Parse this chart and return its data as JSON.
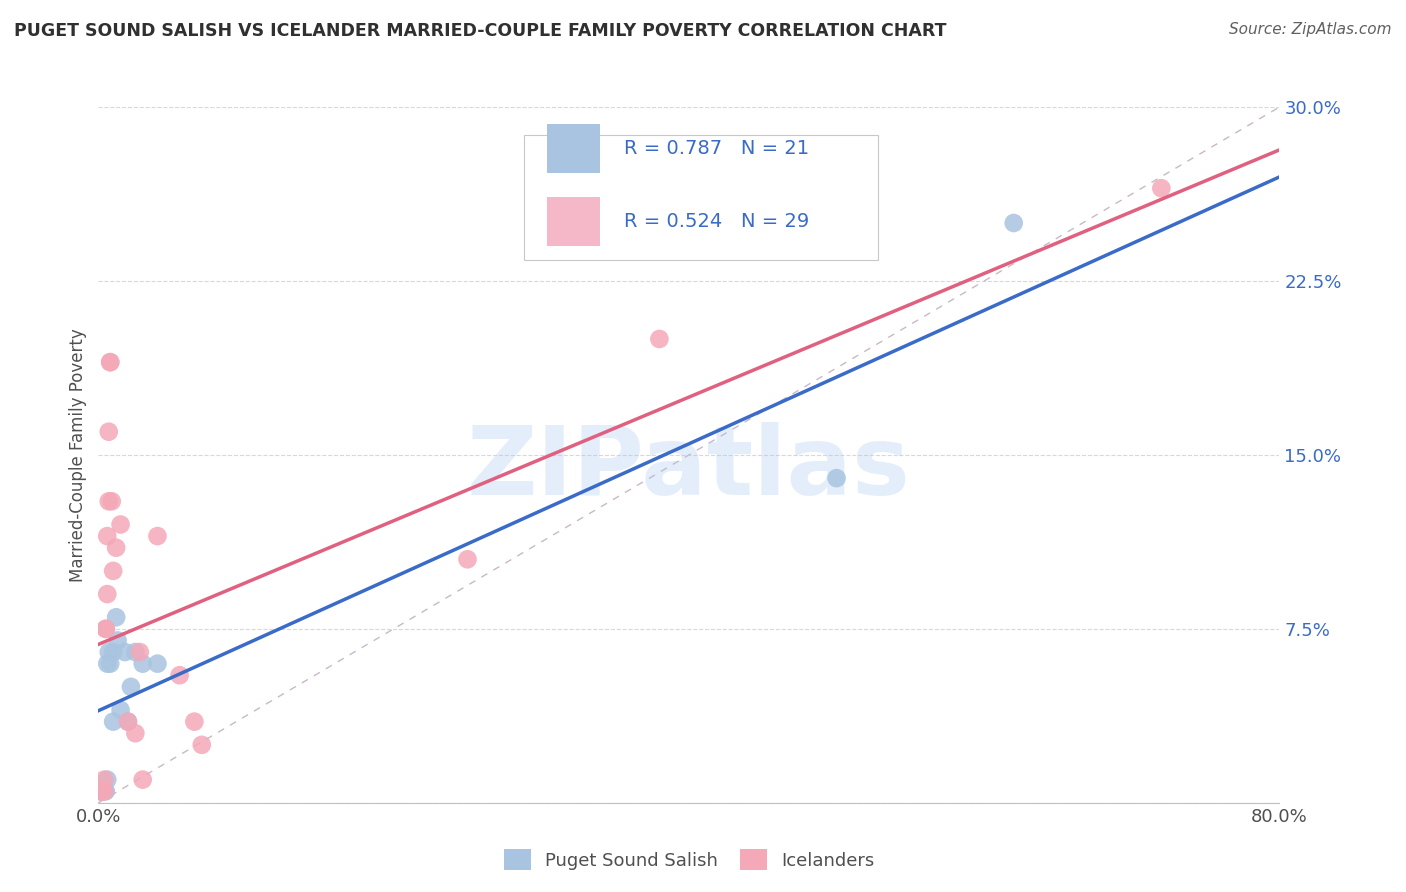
{
  "title": "PUGET SOUND SALISH VS ICELANDER MARRIED-COUPLE FAMILY POVERTY CORRELATION CHART",
  "source": "Source: ZipAtlas.com",
  "ylabel": "Married-Couple Family Poverty",
  "watermark": "ZIPatlas",
  "xlim": [
    0.0,
    0.8
  ],
  "ylim": [
    0.0,
    0.3
  ],
  "xticks": [
    0.0,
    0.1,
    0.2,
    0.3,
    0.4,
    0.5,
    0.6,
    0.7,
    0.8
  ],
  "xticklabels": [
    "0.0%",
    "",
    "",
    "",
    "",
    "",
    "",
    "",
    "80.0%"
  ],
  "yticks": [
    0.0,
    0.075,
    0.15,
    0.225,
    0.3
  ],
  "yticklabels": [
    "",
    "7.5%",
    "15.0%",
    "22.5%",
    "30.0%"
  ],
  "blue_R": 0.787,
  "blue_N": 21,
  "pink_R": 0.524,
  "pink_N": 29,
  "blue_color": "#a8c4e0",
  "pink_color": "#f4a8b8",
  "blue_line_color": "#3a6bc8",
  "pink_line_color": "#e06080",
  "diag_line_color": "#c8b8c8",
  "legend_blue_fill": "#a8c4e0",
  "legend_pink_fill": "#f4b8c8",
  "label_color": "#3a6bc8",
  "blue_points": [
    [
      0.002,
      0.005
    ],
    [
      0.003,
      0.005
    ],
    [
      0.004,
      0.005
    ],
    [
      0.005,
      0.005
    ],
    [
      0.006,
      0.01
    ],
    [
      0.006,
      0.06
    ],
    [
      0.007,
      0.065
    ],
    [
      0.008,
      0.06
    ],
    [
      0.01,
      0.065
    ],
    [
      0.01,
      0.035
    ],
    [
      0.012,
      0.08
    ],
    [
      0.013,
      0.07
    ],
    [
      0.015,
      0.04
    ],
    [
      0.018,
      0.065
    ],
    [
      0.02,
      0.035
    ],
    [
      0.022,
      0.05
    ],
    [
      0.025,
      0.065
    ],
    [
      0.03,
      0.06
    ],
    [
      0.04,
      0.06
    ],
    [
      0.5,
      0.14
    ],
    [
      0.62,
      0.25
    ]
  ],
  "pink_points": [
    [
      0.001,
      0.005
    ],
    [
      0.002,
      0.005
    ],
    [
      0.002,
      0.005
    ],
    [
      0.003,
      0.005
    ],
    [
      0.004,
      0.005
    ],
    [
      0.004,
      0.01
    ],
    [
      0.005,
      0.075
    ],
    [
      0.005,
      0.075
    ],
    [
      0.006,
      0.09
    ],
    [
      0.006,
      0.115
    ],
    [
      0.007,
      0.13
    ],
    [
      0.007,
      0.16
    ],
    [
      0.008,
      0.19
    ],
    [
      0.008,
      0.19
    ],
    [
      0.009,
      0.13
    ],
    [
      0.01,
      0.1
    ],
    [
      0.012,
      0.11
    ],
    [
      0.015,
      0.12
    ],
    [
      0.02,
      0.035
    ],
    [
      0.025,
      0.03
    ],
    [
      0.028,
      0.065
    ],
    [
      0.03,
      0.01
    ],
    [
      0.04,
      0.115
    ],
    [
      0.055,
      0.055
    ],
    [
      0.065,
      0.035
    ],
    [
      0.07,
      0.025
    ],
    [
      0.25,
      0.105
    ],
    [
      0.38,
      0.2
    ],
    [
      0.72,
      0.265
    ]
  ]
}
